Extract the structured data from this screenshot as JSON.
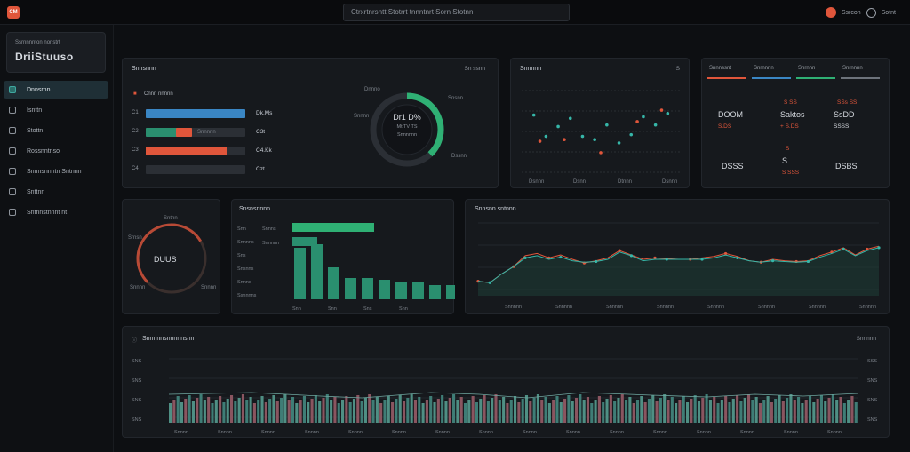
{
  "topbar": {
    "logo": "CM",
    "search_text": "Ctrxrtnrsntt Stotrrt tnnntnrt Sorn Stotnn",
    "user_name": "Ssrcon",
    "settings_label": "Sotnt"
  },
  "sidebar": {
    "brand_sub": "Ssrnnnnton nonstrt",
    "brand_title": "DriiStuuso",
    "items": [
      {
        "label": "Dnnsrnn",
        "icon": "dashboard-icon",
        "active": true
      },
      {
        "label": "Isnttn",
        "icon": "list-icon",
        "active": false
      },
      {
        "label": "Stottn",
        "icon": "settings-icon",
        "active": false
      },
      {
        "label": "Rossnntnso",
        "icon": "target-icon",
        "active": false
      },
      {
        "label": "Snnnsnnntn Sntnnn",
        "icon": "globe-icon",
        "active": false
      },
      {
        "label": "Snttnn",
        "icon": "box-icon",
        "active": false
      },
      {
        "label": "Sntnnstnnnt nt",
        "icon": "info-icon",
        "active": false
      }
    ]
  },
  "panel_overview": {
    "title": "Snnsnnn",
    "meta": "Sn ssnn",
    "legend": "Cnnn nnnnn",
    "rows": [
      {
        "code": "C1",
        "pct": 100,
        "color": "#3a86c4",
        "value": "Dk.Ms"
      },
      {
        "code": "C2",
        "pct": 46,
        "color": "#2a8f6f",
        "accent": 16,
        "label": "Snnnnn",
        "value": "C3t"
      },
      {
        "code": "C3",
        "pct": 82,
        "color": "#e0563b",
        "accent_only": true,
        "value": "C4.Kk"
      },
      {
        "code": "C4",
        "pct": 0,
        "color": "#2b2f35",
        "value": "Czt"
      }
    ],
    "donut": {
      "value": "Dr1 D%",
      "sub1": "Mt TV TS",
      "sub2": "Snnnnnn",
      "pct": 0.38,
      "color": "#2fb074",
      "side_labels": [
        "Dnnno",
        "Snnnn",
        "Snsnn",
        "Dssnn"
      ]
    }
  },
  "panel_scatter": {
    "title": "Snnnnn",
    "meta": "S",
    "xlabels": [
      "Dsnnn",
      "Dsnn",
      "Dtnnn",
      "Dsnnn"
    ],
    "chart_data": {
      "type": "scatter",
      "title": "Snnnnn",
      "series": [
        {
          "color": "#36b6a8",
          "points": [
            [
              1,
              7.5
            ],
            [
              2,
              6.2
            ],
            [
              3,
              6.8
            ],
            [
              4,
              7.3
            ],
            [
              5,
              6.2
            ],
            [
              6,
              6.0
            ],
            [
              7,
              6.9
            ],
            [
              8,
              5.8
            ],
            [
              9,
              6.3
            ],
            [
              10,
              7.4
            ],
            [
              11,
              6.9
            ],
            [
              12,
              7.6
            ]
          ]
        },
        {
          "color": "#e0563b",
          "points": [
            [
              1.5,
              5.9
            ],
            [
              3.5,
              6.0
            ],
            [
              6.5,
              5.2
            ],
            [
              9.5,
              7.1
            ],
            [
              11.5,
              7.8
            ]
          ]
        }
      ],
      "xlim": [
        0,
        13
      ],
      "ylim": [
        4,
        9
      ]
    }
  },
  "panel_kpi": {
    "tabs": [
      "Snnnssnt",
      "Snrnnnn",
      "Snrnnn",
      "Snrnnnn"
    ],
    "tab_colors": [
      "#e0563b",
      "#3a86c4",
      "#2fb074",
      "#6d737b"
    ],
    "cells": [
      {
        "value": "DOOM",
        "sub": "S.DS",
        "sub_color": "#e0563b"
      },
      {
        "value": "Saktos",
        "top": "S SS",
        "sub": "+ S.DS",
        "sub_color": "#e0563b"
      },
      {
        "value": "SsDD",
        "top": "SSs SS",
        "sub": "SSSS",
        "sub_color": "#d6dae0"
      },
      {
        "value": "DSSS",
        "top": "",
        "sub": "",
        "sub_color": "#d6dae0"
      },
      {
        "value": "S",
        "top": "S",
        "sub": "S SSS",
        "sub_color": "#e0563b"
      },
      {
        "value": "DSBS",
        "top": "",
        "sub": "",
        "sub_color": "#d6dae0"
      }
    ]
  },
  "panel_gauge": {
    "value": "DUUS",
    "labels": [
      "Sntnn",
      "Srnsn",
      "Snnnn",
      "Snnnn"
    ],
    "pct": 0.72
  },
  "panel_bars": {
    "title": "Snsnsnnnn",
    "hbars": [
      {
        "label": "Snnns",
        "value": 92,
        "color": "#2fb074"
      },
      {
        "label": "Snnnnn",
        "value": 28,
        "color": "#2a8f6f"
      }
    ],
    "ylabels": [
      "Snn",
      "Snnnns",
      "Sns",
      "Snsnns",
      "Snnns",
      "Ssnnnns"
    ],
    "xlabels": [
      "Snn",
      "Snn",
      "Sns",
      "Snn"
    ],
    "chart_data": {
      "type": "bar",
      "categories": [
        "b1",
        "b2",
        "b3",
        "b4",
        "b5",
        "b6",
        "b7",
        "b8",
        "b9",
        "b10"
      ],
      "values": [
        58,
        62,
        36,
        24,
        24,
        22,
        20,
        20,
        16,
        16
      ],
      "color": "#2a8f6f",
      "ylim": [
        0,
        100
      ]
    }
  },
  "panel_line": {
    "title": "Snnsnn sntnnn",
    "xlabels": [
      "Snnnnn",
      "Snnnnn",
      "Snnnnn",
      "Snnnnn",
      "Snnnnn",
      "Snnnnn",
      "Snnnnn",
      "Snnnnn"
    ],
    "chart_data": {
      "type": "area",
      "x": [
        0,
        1,
        2,
        3,
        4,
        5,
        6,
        7,
        8,
        9,
        10,
        11,
        12,
        13,
        14,
        15,
        16,
        17,
        18,
        19,
        20,
        21,
        22,
        23,
        24,
        25,
        26,
        27,
        28,
        29,
        30,
        31,
        32,
        33,
        34
      ],
      "series": [
        {
          "color": "#e0563b",
          "values": [
            20,
            18,
            30,
            40,
            55,
            58,
            52,
            56,
            50,
            45,
            48,
            52,
            62,
            56,
            50,
            52,
            51,
            50,
            50,
            52,
            54,
            58,
            54,
            48,
            46,
            50,
            48,
            47,
            48,
            55,
            60,
            66,
            56,
            64,
            68
          ]
        },
        {
          "color": "#36b6a8",
          "values": [
            20,
            18,
            30,
            40,
            52,
            55,
            50,
            53,
            48,
            46,
            47,
            50,
            60,
            55,
            48,
            50,
            50,
            50,
            50,
            50,
            52,
            56,
            52,
            48,
            46,
            48,
            47,
            46,
            47,
            53,
            58,
            64,
            55,
            62,
            66
          ]
        }
      ],
      "ylim": [
        0,
        100
      ]
    }
  },
  "panel_bottom": {
    "title": "Snnnnnsnnnnnsnn",
    "meta": "Snnnnn",
    "ylabels_left": [
      "SNS",
      "SNS",
      "SNS",
      "SNS"
    ],
    "ylabels_right": [
      "SSS",
      "SNS",
      "SNS",
      "SNS"
    ],
    "xlabels": [
      "Snnnn",
      "Snnnn",
      "Snnnn",
      "Snnnn",
      "Snnnn",
      "Snnnn",
      "Snnnn",
      "Snnnn",
      "Snnnn",
      "Snnnn",
      "Snnnn",
      "Snnnn",
      "Snnnn",
      "Snnnn",
      "Snnnn",
      "Snnnn"
    ],
    "chart_data": {
      "type": "bar",
      "count": 180,
      "colors": [
        "#4f8f84",
        "#8a5560",
        "#3f7d76"
      ],
      "line_points": [
        [
          0,
          0.5
        ],
        [
          0.12,
          0.6
        ],
        [
          0.22,
          0.4
        ],
        [
          0.28,
          0.3
        ],
        [
          0.38,
          0.6
        ],
        [
          0.45,
          0.5
        ],
        [
          0.52,
          0.3
        ],
        [
          0.6,
          0.6
        ],
        [
          0.7,
          0.45
        ],
        [
          0.78,
          0.35
        ],
        [
          0.85,
          0.5
        ],
        [
          0.92,
          0.4
        ],
        [
          1.0,
          0.55
        ]
      ]
    }
  }
}
